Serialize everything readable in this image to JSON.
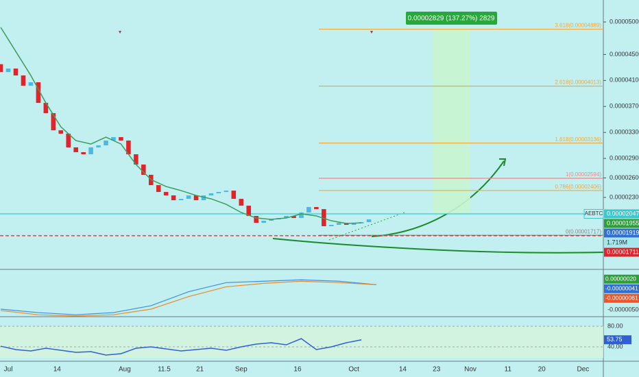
{
  "chart_data": {
    "type": "candlestick",
    "xlim": [
      -2.2,
      158.4
    ],
    "ylim": [
      1.203e-05,
      5.338e-05
    ],
    "xticks": [
      {
        "value": 0,
        "label": "Jul"
      },
      14,
      {
        "value": 31,
        "label": "Aug"
      },
      11.5,
      21,
      {
        "value": 62,
        "label": "Sep"
      },
      16,
      {
        "value": 92,
        "label": "Oct"
      },
      14,
      23,
      {
        "value": 123,
        "label": "Nov"
      },
      11,
      20,
      {
        "value": 153,
        "label": "Dec"
      }
    ],
    "yticks": [
      {
        "value": 5e-05,
        "label": "0.00005000"
      },
      {
        "value": 4.5e-05,
        "label": "0.00004500"
      },
      {
        "value": 4.1e-05,
        "label": "0.00004100"
      },
      {
        "value": 3.7e-05,
        "label": "0.00003700"
      },
      {
        "value": 3.3e-05,
        "label": "0.00003300"
      },
      {
        "value": 2.9e-05,
        "label": "0.00002900"
      },
      {
        "value": 2.6e-05,
        "label": "0.00002600"
      },
      {
        "value": 2.3e-05,
        "label": "0.00002300"
      }
    ],
    "colors": {
      "up": "#4db8e8",
      "down": "#e0242a"
    },
    "x": [
      -2,
      0,
      2,
      4,
      6,
      8,
      10,
      12,
      14,
      16,
      18,
      20,
      22,
      24,
      26,
      28,
      30,
      32,
      34,
      36,
      38,
      40,
      42,
      44,
      46,
      48,
      50,
      52,
      54,
      56,
      58,
      60,
      62,
      64,
      66,
      68,
      70,
      72,
      74,
      76,
      78,
      80,
      82,
      84,
      86,
      88,
      90,
      92,
      94,
      96
    ],
    "open": [
      4.35e-05,
      4.23e-05,
      4.283e-05,
      4.177e-05,
      4.019e-05,
      4.072e-05,
      3.755e-05,
      3.597e-05,
      3.333e-05,
      3.281e-05,
      3.07e-05,
      2.996e-05,
      2.964e-05,
      3.07e-05,
      3.101e-05,
      3.175e-05,
      3.228e-05,
      3.175e-05,
      2.964e-05,
      2.806e-05,
      2.648e-05,
      2.489e-05,
      2.384e-05,
      2.331e-05,
      2.257e-05,
      2.278e-05,
      2.331e-05,
      2.257e-05,
      2.331e-05,
      2.363e-05,
      2.384e-05,
      2.405e-05,
      2.278e-05,
      2.173e-05,
      2.015e-05,
      1.909e-05,
      1.941e-05,
      1.962e-05,
      1.983e-05,
      2.015e-05,
      1.983e-05,
      2.068e-05,
      2.152e-05,
      2.12e-05,
      1.857e-05,
      1.878e-05,
      1.909e-05,
      1.878e-05,
      1.899e-05,
      1.92e-05
    ],
    "close": [
      4.23e-05,
      4.283e-05,
      4.177e-05,
      4.019e-05,
      4.072e-05,
      3.755e-05,
      3.597e-05,
      3.333e-05,
      3.281e-05,
      3.07e-05,
      2.996e-05,
      2.964e-05,
      3.07e-05,
      3.101e-05,
      3.175e-05,
      3.228e-05,
      3.175e-05,
      2.964e-05,
      2.806e-05,
      2.648e-05,
      2.489e-05,
      2.384e-05,
      2.331e-05,
      2.257e-05,
      2.278e-05,
      2.331e-05,
      2.257e-05,
      2.331e-05,
      2.363e-05,
      2.384e-05,
      2.405e-05,
      2.278e-05,
      2.173e-05,
      2.015e-05,
      1.909e-05,
      1.941e-05,
      1.962e-05,
      1.983e-05,
      2.015e-05,
      1.983e-05,
      2.068e-05,
      2.152e-05,
      2.12e-05,
      1.857e-05,
      1.878e-05,
      1.909e-05,
      1.878e-05,
      1.899e-05,
      1.92e-05,
      1.962e-05
    ],
    "ema": {
      "color": "#3a9e5c",
      "x": [
        -2,
        2,
        6,
        10,
        14,
        18,
        22,
        26,
        30,
        34,
        38,
        42,
        46,
        50,
        54,
        58,
        62,
        66,
        70,
        74,
        78,
        82,
        86,
        90,
        94
      ],
      "values": [
        4.916e-05,
        4.546e-05,
        4.177e-05,
        3.755e-05,
        3.386e-05,
        3.175e-05,
        3.122e-05,
        3.228e-05,
        3.122e-05,
        2.806e-05,
        2.574e-05,
        2.468e-05,
        2.405e-05,
        2.331e-05,
        2.278e-05,
        2.194e-05,
        2.068e-05,
        1.983e-05,
        1.962e-05,
        1.983e-05,
        2.047e-05,
        2.015e-05,
        1.941e-05,
        1.899e-05,
        1.909e-05
      ]
    },
    "fib": [
      {
        "label": "3.618(0.00004889)",
        "value": 4.889e-05,
        "color": "#f2a93b"
      },
      {
        "label": "2.618(0.00004013)",
        "value": 4.013e-05,
        "color": "#f2a93b"
      },
      {
        "label": "1.618(0.00003136)",
        "value": 3.136e-05,
        "color": "#f2a93b"
      },
      {
        "label": "1(0.00002594)",
        "value": 2.594e-05,
        "color": "#ef8a8a"
      },
      {
        "label": "0.786(0.00002406)",
        "value": 2.406e-05,
        "color": "#f2a93b"
      },
      {
        "label": "0(0.00001717)",
        "value": 1.717e-05,
        "color": "#8a8a8a"
      }
    ],
    "target": {
      "label": "0.00002829 (137.27%) 2829",
      "xrange": [
        113,
        123
      ],
      "yrange": [
        2.047e-05,
        4.889e-05
      ]
    },
    "price_tags": [
      {
        "name": "AEBTC",
        "label": "0.00002047",
        "value": 2.047e-05,
        "color": "#3fc7d0"
      },
      {
        "label": "0.00001955",
        "value": 1.955e-05,
        "color": "#2e9e3a"
      },
      {
        "label": "0.00001919",
        "value": 1.919e-05,
        "color": "#2f6fd6"
      },
      {
        "label": "1.719M",
        "color": "#a8e6ee"
      },
      {
        "label": "0.00001711",
        "value": 1.711e-05,
        "color": "#e0242a"
      }
    ],
    "macd": {
      "ylim": [
        -6.04e-06,
        1.85e-06
      ],
      "yticks": [
        {
          "value": -5e-06,
          "label": "-0.00000500"
        }
      ],
      "x": [
        -2,
        8,
        18,
        28,
        38,
        48,
        58,
        68,
        78,
        88,
        98
      ],
      "series": [
        {
          "color": "#3d8fe0",
          "values": [
            -4.88e-06,
            -5.47e-06,
            -5.83e-06,
            -5.47e-06,
            -4.29e-06,
            -1.93e-06,
            -3.9e-07,
            -1.5e-07,
            8e-08,
            -1.5e-07,
            -7.5e-07
          ]
        },
        {
          "color": "#f08a24",
          "values": [
            -5.12e-06,
            -5.83e-06,
            -6.04e-06,
            -5.83e-06,
            -4.88e-06,
            -2.76e-06,
            -1.1e-06,
            -5.1e-07,
            -1.5e-07,
            -3.9e-07,
            -7.5e-07
          ]
        }
      ],
      "tags": [
        {
          "label": "0.00000020",
          "value": 2e-07,
          "color": "#2e9e3a"
        },
        {
          "label": "-0.00000041",
          "value": -4.1e-07,
          "color": "#2f6fd6"
        },
        {
          "label": "-0.00000061",
          "value": -6.1e-07,
          "color": "#f0542a"
        }
      ]
    },
    "rsi": {
      "ylim": [
        18.7,
        90.7
      ],
      "yticks": [
        {
          "value": 80,
          "label": "80.00"
        },
        {
          "value": 40,
          "label": "40.00"
        }
      ],
      "color": "#2f5fd6",
      "x": [
        -2,
        2,
        6,
        10,
        14,
        18,
        22,
        26,
        30,
        34,
        38,
        42,
        46,
        50,
        54,
        58,
        62,
        66,
        70,
        74,
        78,
        82,
        86,
        90,
        94
      ],
      "values": [
        41.3,
        34.7,
        32,
        37.3,
        33.3,
        29.3,
        30.7,
        24,
        26.7,
        37.3,
        40,
        36,
        32,
        34.7,
        37.3,
        33.3,
        40,
        45.3,
        48,
        44,
        56,
        34.7,
        40,
        48,
        53.75
      ],
      "tag": {
        "label": "53.75",
        "value": 53.75
      }
    }
  }
}
